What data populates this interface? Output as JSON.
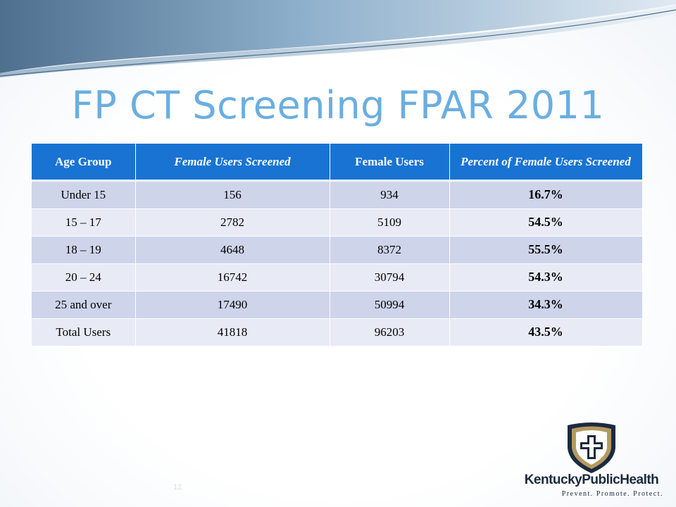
{
  "slide": {
    "title": "FP CT Screening FPAR 2011",
    "page_number": "12"
  },
  "table": {
    "headers": [
      "Age Group",
      "Female Users Screened",
      "Female Users",
      "Percent of Female Users Screened"
    ],
    "rows": [
      [
        "Under 15",
        "156",
        "934",
        "16.7%"
      ],
      [
        "15 – 17",
        "2782",
        "5109",
        "54.5%"
      ],
      [
        "18 – 19",
        "4648",
        "8372",
        "55.5%"
      ],
      [
        "20 – 24",
        "16742",
        "30794",
        "54.3%"
      ],
      [
        "25 and over",
        "17490",
        "50994",
        "34.3%"
      ],
      [
        "Total Users",
        "41818",
        "96203",
        "43.5%"
      ]
    ]
  },
  "logo": {
    "name": "KentuckyPublicHealth",
    "tagline": "Prevent. Promote. Protect."
  },
  "colors": {
    "title": "#6aaee0",
    "header_bg": "#1873d3",
    "row_odd": "#ced4ea",
    "row_even": "#e8ebf5",
    "logo_gold": "#b39a5f",
    "logo_navy": "#1c2a3e"
  }
}
